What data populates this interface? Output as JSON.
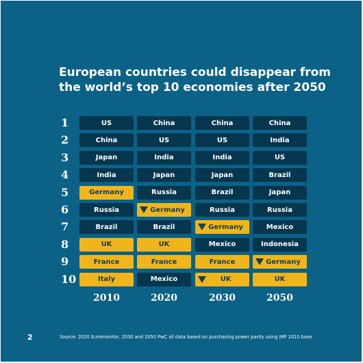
{
  "title_lines": [
    "European countries could disappear from",
    "the world’s top 10 economies after 2050"
  ],
  "ranks": [
    "1",
    "2",
    "3",
    "4",
    "5",
    "6",
    "7",
    "8",
    "9",
    "10"
  ],
  "years": [
    "2010",
    "2020",
    "2030",
    "2050"
  ],
  "columns": [
    {
      "year": "2010",
      "cells": [
        {
          "label": "US",
          "highlight": false,
          "arrow": false
        },
        {
          "label": "China",
          "highlight": false,
          "arrow": false
        },
        {
          "label": "Japan",
          "highlight": false,
          "arrow": false
        },
        {
          "label": "India",
          "highlight": false,
          "arrow": false
        },
        {
          "label": "Germany",
          "highlight": true,
          "arrow": false
        },
        {
          "label": "Russia",
          "highlight": false,
          "arrow": false
        },
        {
          "label": "Brazil",
          "highlight": false,
          "arrow": false
        },
        {
          "label": "UK",
          "highlight": true,
          "arrow": false
        },
        {
          "label": "France",
          "highlight": true,
          "arrow": false
        },
        {
          "label": "Italy",
          "highlight": true,
          "arrow": false
        }
      ]
    },
    {
      "year": "2020",
      "cells": [
        {
          "label": "China",
          "highlight": false,
          "arrow": false
        },
        {
          "label": "US",
          "highlight": false,
          "arrow": false
        },
        {
          "label": "India",
          "highlight": false,
          "arrow": false
        },
        {
          "label": "Japan",
          "highlight": false,
          "arrow": false
        },
        {
          "label": "Russia",
          "highlight": false,
          "arrow": false
        },
        {
          "label": "Germany",
          "highlight": true,
          "arrow": true
        },
        {
          "label": "Brazil",
          "highlight": false,
          "arrow": false
        },
        {
          "label": "UK",
          "highlight": true,
          "arrow": false
        },
        {
          "label": "France",
          "highlight": true,
          "arrow": false
        },
        {
          "label": "Mexico",
          "highlight": false,
          "arrow": false
        }
      ]
    },
    {
      "year": "2030",
      "cells": [
        {
          "label": "China",
          "highlight": false,
          "arrow": false
        },
        {
          "label": "US",
          "highlight": false,
          "arrow": false
        },
        {
          "label": "India",
          "highlight": false,
          "arrow": false
        },
        {
          "label": "Japan",
          "highlight": false,
          "arrow": false
        },
        {
          "label": "Brazil",
          "highlight": false,
          "arrow": false
        },
        {
          "label": "Russia",
          "highlight": false,
          "arrow": false
        },
        {
          "label": "Germany",
          "highlight": true,
          "arrow": true
        },
        {
          "label": "Mexico",
          "highlight": false,
          "arrow": false
        },
        {
          "label": "France",
          "highlight": true,
          "arrow": false
        },
        {
          "label": "UK",
          "highlight": true,
          "arrow": true
        }
      ]
    },
    {
      "year": "2050",
      "cells": [
        {
          "label": "China",
          "highlight": false,
          "arrow": false
        },
        {
          "label": "India",
          "highlight": false,
          "arrow": false
        },
        {
          "label": "US",
          "highlight": false,
          "arrow": false
        },
        {
          "label": "Brazil",
          "highlight": false,
          "arrow": false
        },
        {
          "label": "Japan",
          "highlight": false,
          "arrow": false
        },
        {
          "label": "Russia",
          "highlight": false,
          "arrow": false
        },
        {
          "label": "Mexico",
          "highlight": false,
          "arrow": false
        },
        {
          "label": "Indonesia",
          "highlight": false,
          "arrow": false
        },
        {
          "label": "Germany",
          "highlight": true,
          "arrow": true
        },
        {
          "label": "UK",
          "highlight": true,
          "arrow": false
        }
      ]
    }
  ],
  "page_number": "2",
  "source": "Source: 2020 Euromonitor, 2030 and 2050 PwC    all data based on purchasing power parity using IMF 2010 base",
  "colors": {
    "background": "#0b6186",
    "cell_dark": "#07364f",
    "cell_highlight": "#f1b51c",
    "text_on_highlight": "#123d56",
    "text": "#ffffff"
  }
}
